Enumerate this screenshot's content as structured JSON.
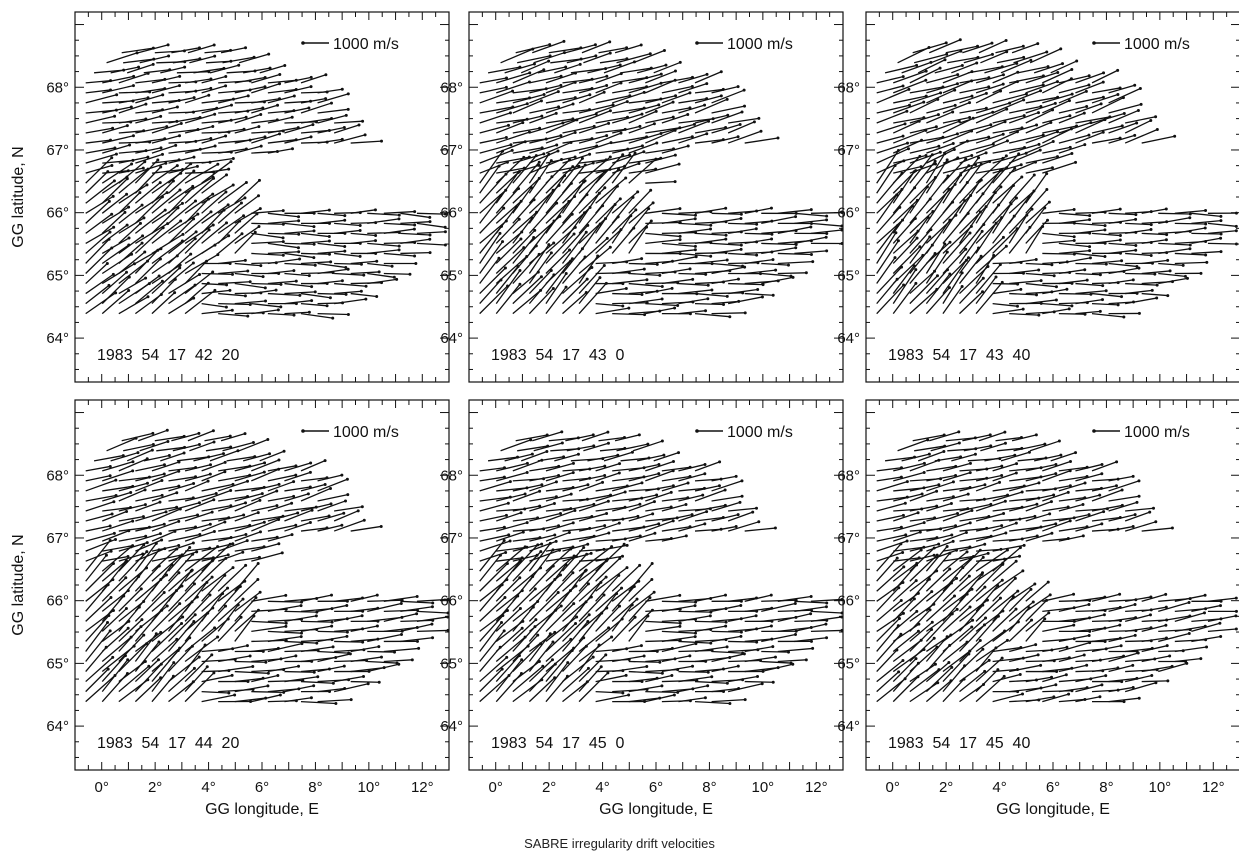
{
  "caption": "SABRE irregularity drift velocities",
  "colors": {
    "ink": "#111111",
    "background": "#ffffff"
  },
  "chart_data": [
    {
      "type": "vector-field",
      "timestamp": "1983  54  17  42  20",
      "scale_label": "1000 m/s",
      "ylabel": "GG latitude, N",
      "xlabel": "",
      "xlim": [
        -1,
        13
      ],
      "ylim": [
        63.3,
        69.2
      ],
      "x_ticks": [
        "0°",
        "2°",
        "4°",
        "6°",
        "8°",
        "10°",
        "12°"
      ],
      "y_ticks": [
        "64°",
        "65°",
        "66°",
        "67°",
        "68°"
      ],
      "x_tick_values": [
        0,
        2,
        4,
        6,
        8,
        10,
        12
      ],
      "y_tick_values": [
        64,
        65,
        66,
        67,
        68
      ],
      "grid": false,
      "upper_lobe": {
        "dir_deg": 10,
        "vec_len": 1.1
      },
      "lower_lobe": {
        "dir_deg": 38,
        "vec_len": 1.3
      },
      "arc_region": {
        "dir_deg": 0,
        "vec_len": 1.1
      },
      "lobe_gap_rows": [
        66.8,
        66.2
      ]
    },
    {
      "type": "vector-field",
      "timestamp": "1983  54  17  43  0",
      "scale_label": "1000 m/s",
      "ylabel": "",
      "xlabel": "",
      "xlim": [
        -1,
        13
      ],
      "ylim": [
        63.3,
        69.2
      ],
      "x_ticks": [
        "0°",
        "2°",
        "4°",
        "6°",
        "8°",
        "10°",
        "12°"
      ],
      "y_ticks": [
        "64°",
        "65°",
        "66°",
        "67°",
        "68°"
      ],
      "x_tick_values": [
        0,
        2,
        4,
        6,
        8,
        10,
        12
      ],
      "y_tick_values": [
        64,
        65,
        66,
        67,
        68
      ],
      "grid": false,
      "upper_lobe": {
        "dir_deg": 15,
        "vec_len": 1.2
      },
      "lower_lobe": {
        "dir_deg": 48,
        "vec_len": 1.4
      },
      "arc_region": {
        "dir_deg": 3,
        "vec_len": 1.2
      },
      "lobe_gap_rows": [
        66.4,
        66.0
      ]
    },
    {
      "type": "vector-field",
      "timestamp": "1983  54  17  43  40",
      "scale_label": "1000 m/s",
      "ylabel": "",
      "xlabel": "",
      "xlim": [
        -1,
        13
      ],
      "ylim": [
        63.3,
        69.2
      ],
      "x_ticks": [
        "0°",
        "2°",
        "4°",
        "6°",
        "8°",
        "10°",
        "12°"
      ],
      "y_ticks": [
        "64°",
        "65°",
        "66°",
        "67°",
        "68°"
      ],
      "x_tick_values": [
        0,
        2,
        4,
        6,
        8,
        10,
        12
      ],
      "y_tick_values": [
        64,
        65,
        66,
        67,
        68
      ],
      "grid": false,
      "upper_lobe": {
        "dir_deg": 18,
        "vec_len": 1.2
      },
      "lower_lobe": {
        "dir_deg": 50,
        "vec_len": 1.4
      },
      "arc_region": {
        "dir_deg": 2,
        "vec_len": 1.1
      },
      "lobe_gap_rows": [
        66.6,
        66.2
      ]
    },
    {
      "type": "vector-field",
      "timestamp": "1983  54  17  44  20",
      "scale_label": "1000 m/s",
      "ylabel": "GG latitude, N",
      "xlabel": "GG longitude, E",
      "xlim": [
        -1,
        13
      ],
      "ylim": [
        63.3,
        69.2
      ],
      "x_ticks": [
        "0°",
        "2°",
        "4°",
        "6°",
        "8°",
        "10°",
        "12°"
      ],
      "y_ticks": [
        "64°",
        "65°",
        "66°",
        "67°",
        "68°"
      ],
      "x_tick_values": [
        0,
        2,
        4,
        6,
        8,
        10,
        12
      ],
      "y_tick_values": [
        64,
        65,
        66,
        67,
        68
      ],
      "grid": false,
      "upper_lobe": {
        "dir_deg": 15,
        "vec_len": 1.1
      },
      "lower_lobe": {
        "dir_deg": 45,
        "vec_len": 1.4
      },
      "arc_region": {
        "dir_deg": 5,
        "vec_len": 1.2
      },
      "lobe_gap_rows": [
        66.6,
        66.2
      ]
    },
    {
      "type": "vector-field",
      "timestamp": "1983  54  17  45  0",
      "scale_label": "1000 m/s",
      "ylabel": "",
      "xlabel": "GG longitude, E",
      "xlim": [
        -1,
        13
      ],
      "ylim": [
        63.3,
        69.2
      ],
      "x_ticks": [
        "0°",
        "2°",
        "4°",
        "6°",
        "8°",
        "10°",
        "12°"
      ],
      "y_ticks": [
        "64°",
        "65°",
        "66°",
        "67°",
        "68°"
      ],
      "x_tick_values": [
        0,
        2,
        4,
        6,
        8,
        10,
        12
      ],
      "y_tick_values": [
        64,
        65,
        66,
        67,
        68
      ],
      "grid": false,
      "upper_lobe": {
        "dir_deg": 12,
        "vec_len": 1.1
      },
      "lower_lobe": {
        "dir_deg": 45,
        "vec_len": 1.4
      },
      "arc_region": {
        "dir_deg": 5,
        "vec_len": 1.2
      },
      "lobe_gap_rows": [
        66.8,
        66.2
      ]
    },
    {
      "type": "vector-field",
      "timestamp": "1983  54  17  45  40",
      "scale_label": "1000 m/s",
      "ylabel": "",
      "xlabel": "GG longitude, E",
      "xlim": [
        -1,
        13
      ],
      "ylim": [
        63.3,
        69.2
      ],
      "x_ticks": [
        "0°",
        "2°",
        "4°",
        "6°",
        "8°",
        "10°",
        "12°"
      ],
      "y_ticks": [
        "64°",
        "65°",
        "66°",
        "67°",
        "68°"
      ],
      "x_tick_values": [
        0,
        2,
        4,
        6,
        8,
        10,
        12
      ],
      "y_tick_values": [
        64,
        65,
        66,
        67,
        68
      ],
      "grid": false,
      "upper_lobe": {
        "dir_deg": 12,
        "vec_len": 1.1
      },
      "lower_lobe": {
        "dir_deg": 42,
        "vec_len": 1.3
      },
      "arc_region": {
        "dir_deg": 8,
        "vec_len": 1.1
      },
      "lobe_gap_rows": [
        66.8,
        66.0
      ]
    }
  ]
}
